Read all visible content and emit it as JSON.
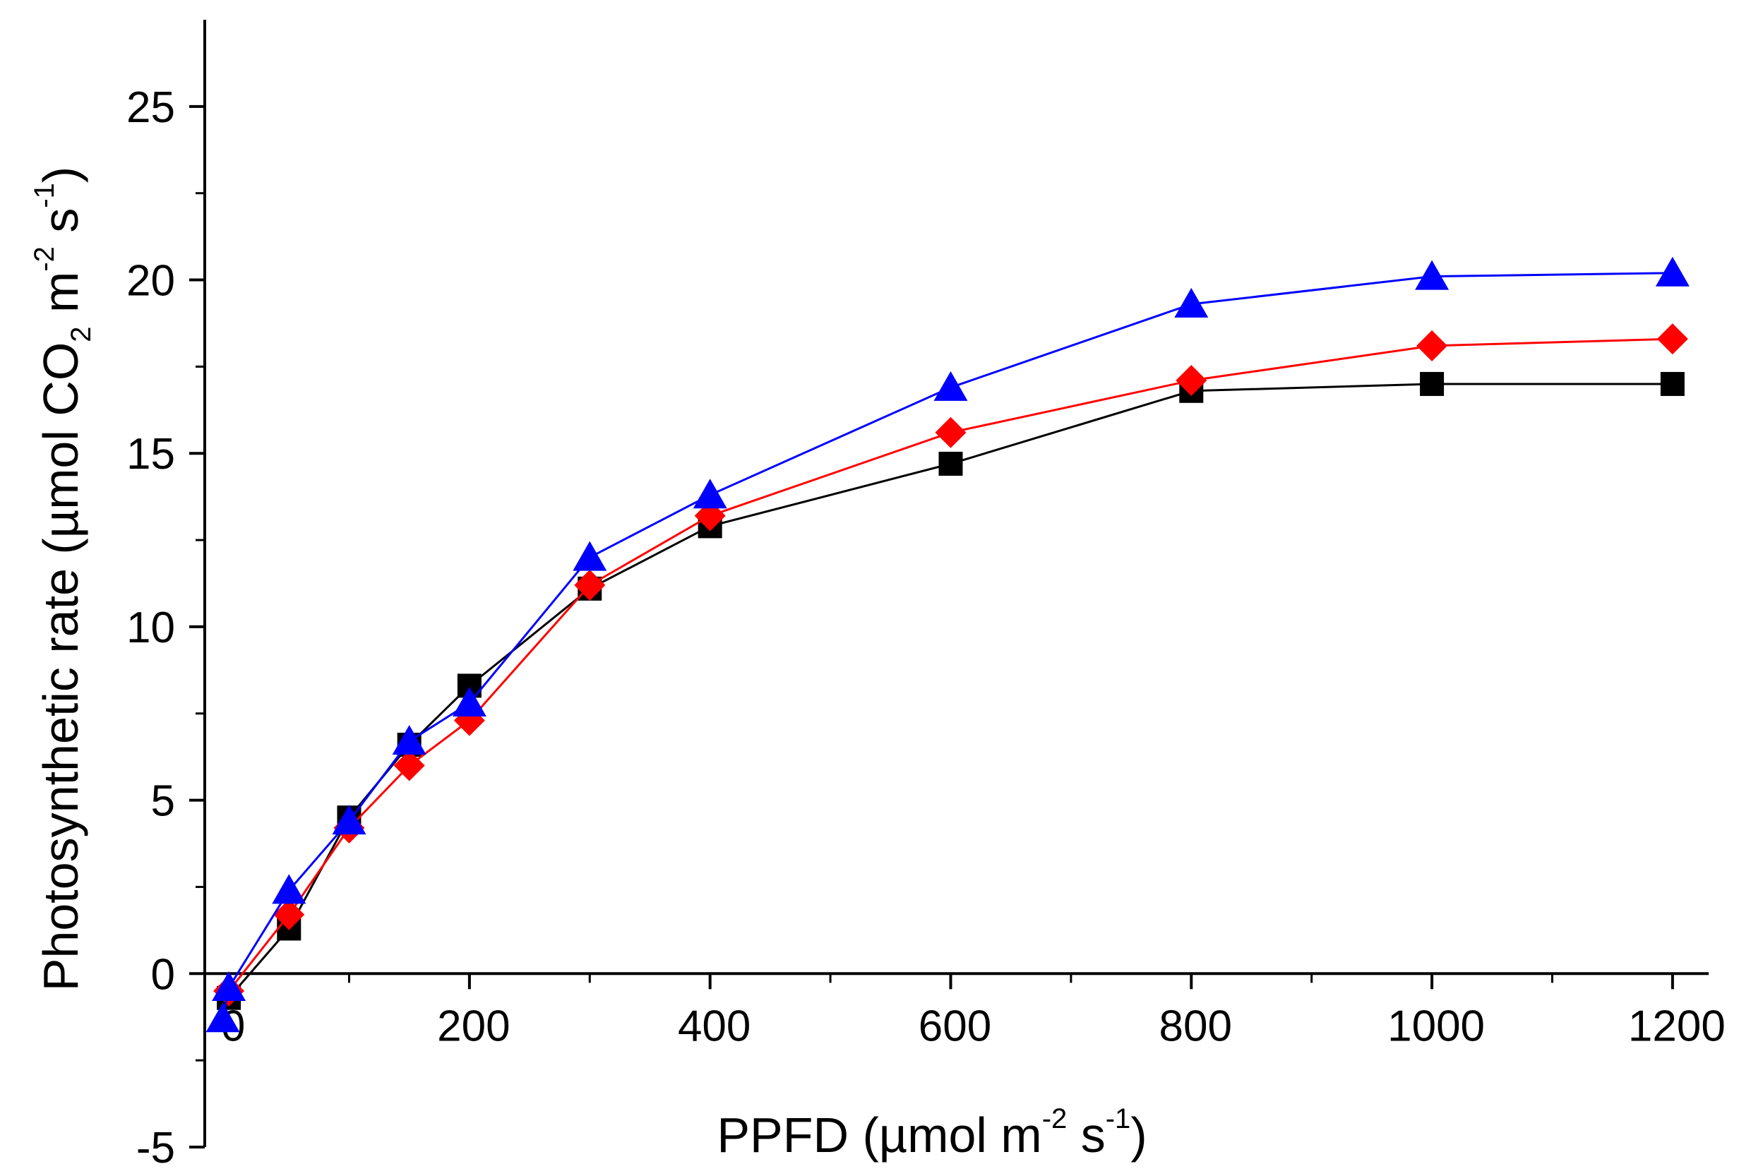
{
  "chart_data": {
    "type": "line",
    "title": "",
    "xlabel": {
      "main": "PPFD (µmol  m",
      "sup1": "-2",
      "mid": " s",
      "sup2": "-1",
      "end": ")"
    },
    "ylabel": {
      "main": "Photosynthetic rate (µmol CO",
      "sub": "2",
      "mid1": " m",
      "sup1": "-2",
      "mid2": " s",
      "sup2": "-1",
      "end": ")"
    },
    "xlim": [
      -20,
      1230
    ],
    "ylim": [
      -5,
      27.5
    ],
    "x_ticks": [
      0,
      200,
      400,
      600,
      800,
      1000,
      1200
    ],
    "x_ticklabels": [
      "0",
      "200",
      "400",
      "600",
      "800",
      "1000",
      "1200"
    ],
    "x_minor_ticks": [
      100,
      300,
      500,
      700,
      900,
      1100
    ],
    "y_ticks": [
      -5,
      0,
      5,
      10,
      15,
      20,
      25
    ],
    "y_ticklabels": [
      "-5",
      "0",
      "5",
      "10",
      "15",
      "20",
      "25"
    ],
    "y_minor_ticks": [
      -2.5,
      2.5,
      7.5,
      12.5,
      17.5,
      22.5
    ],
    "grid": false,
    "series": [
      {
        "name": "black",
        "color": "#000000",
        "marker": "square",
        "x": [
          0,
          50,
          100,
          150,
          200,
          300,
          400,
          600,
          800,
          1000,
          1200
        ],
        "y": [
          -0.7,
          1.3,
          4.5,
          6.6,
          8.3,
          11.1,
          12.9,
          14.7,
          16.8,
          17.0,
          17.0
        ]
      },
      {
        "name": "red",
        "color": "#ff0000",
        "marker": "diamond",
        "x": [
          0,
          50,
          100,
          150,
          200,
          300,
          400,
          600,
          800,
          1000,
          1200
        ],
        "y": [
          -0.5,
          1.7,
          4.2,
          6.0,
          7.3,
          11.2,
          13.2,
          15.6,
          17.1,
          18.1,
          18.3
        ]
      },
      {
        "name": "blue",
        "color": "#0000ff",
        "marker": "triangle",
        "x": [
          -5,
          0,
          50,
          100,
          150,
          200,
          300,
          400,
          600,
          800,
          1000,
          1200
        ],
        "y": [
          -1.3,
          -0.4,
          2.4,
          4.4,
          6.7,
          7.8,
          12.0,
          13.8,
          16.9,
          19.3,
          20.1,
          20.2
        ]
      }
    ]
  }
}
